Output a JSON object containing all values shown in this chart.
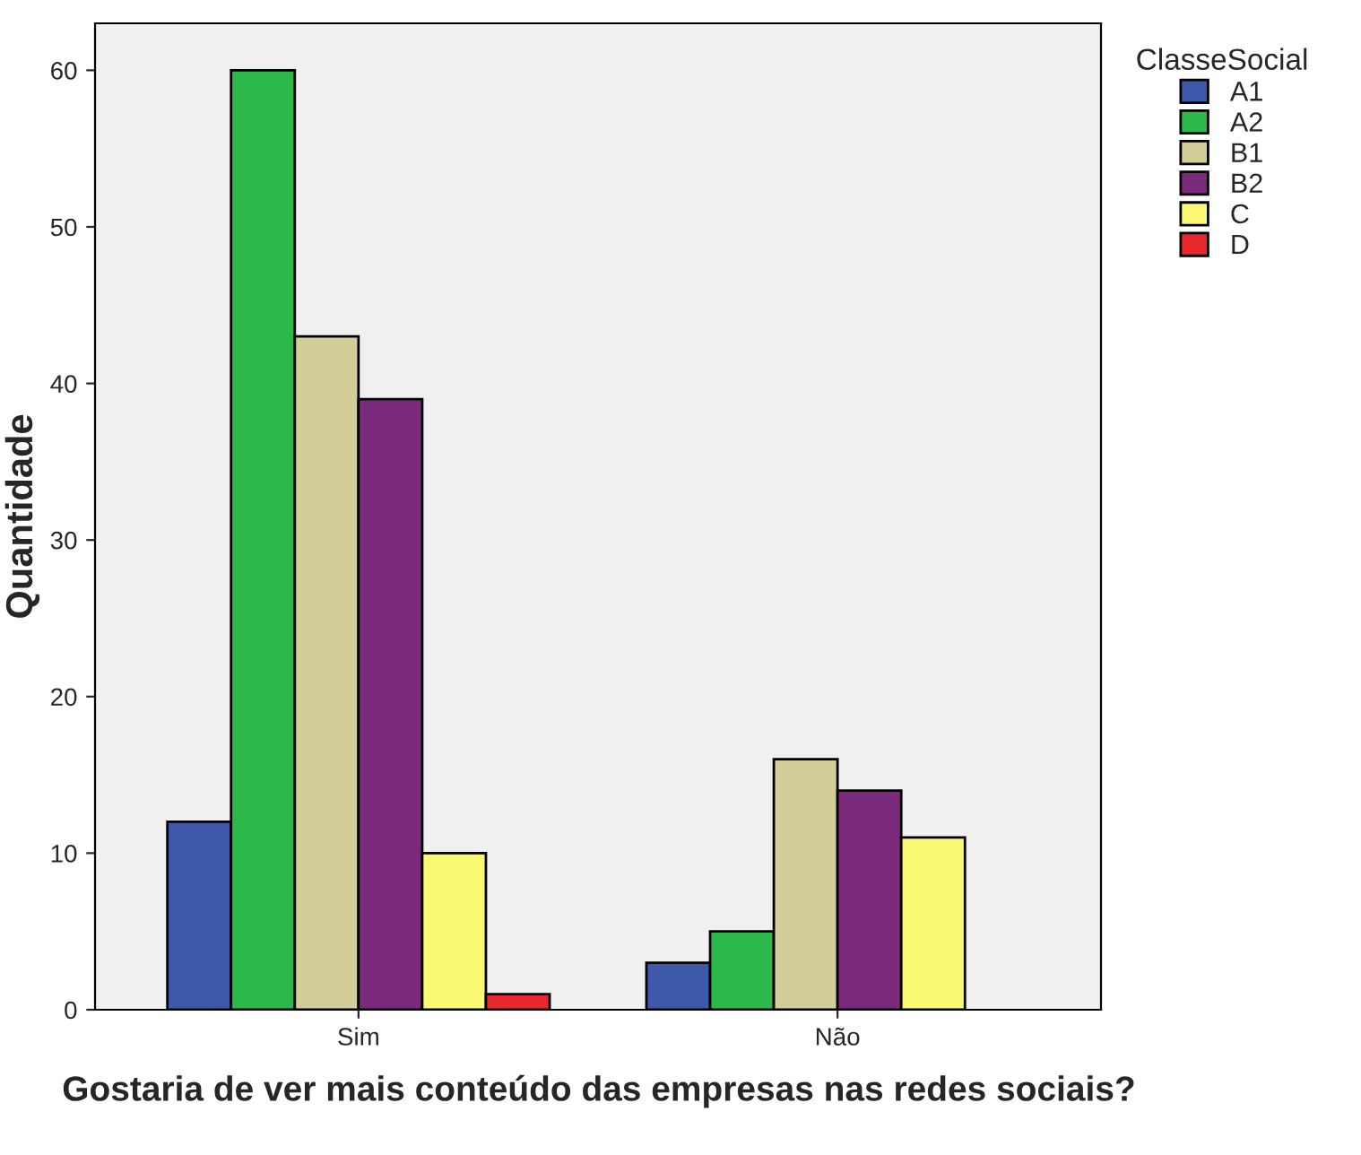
{
  "chart_data": {
    "type": "bar",
    "xlabel": "Gostaria de ver mais conteúdo das empresas nas redes sociais?",
    "ylabel": "Quantidade",
    "legend_title": "ClasseSocial",
    "categories": [
      "Sim",
      "Não"
    ],
    "series": [
      {
        "name": "A1",
        "color": "#3e58ac",
        "values": [
          12,
          3
        ]
      },
      {
        "name": "A2",
        "color": "#2db84a",
        "values": [
          60,
          5
        ]
      },
      {
        "name": "B1",
        "color": "#d3ce97",
        "values": [
          43,
          16
        ]
      },
      {
        "name": "B2",
        "color": "#7b2a7b",
        "values": [
          39,
          14
        ]
      },
      {
        "name": "C",
        "color": "#fbf873",
        "values": [
          10,
          11
        ]
      },
      {
        "name": "D",
        "color": "#e8282e",
        "values": [
          1,
          null
        ]
      }
    ],
    "ylim": [
      0,
      63
    ],
    "yticks": [
      0,
      10,
      20,
      30,
      40,
      50,
      60
    ],
    "grid": false,
    "legend": "right"
  }
}
